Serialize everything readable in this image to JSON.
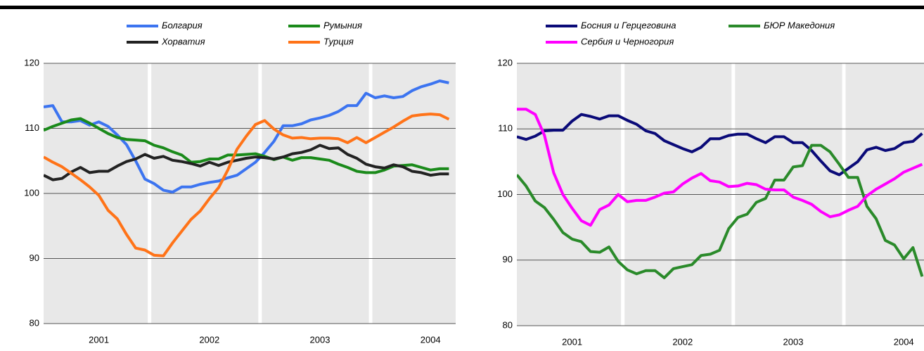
{
  "chart_data": [
    {
      "type": "line",
      "categories": [
        null,
        null,
        null,
        null,
        null,
        null,
        "2001",
        null,
        null,
        null,
        null,
        null,
        null,
        null,
        null,
        null,
        null,
        null,
        "2002",
        null,
        null,
        null,
        null,
        null,
        null,
        null,
        null,
        null,
        null,
        null,
        "2003",
        null,
        null,
        null,
        null,
        null,
        null,
        null,
        null,
        null,
        null,
        null,
        "2004",
        null,
        null
      ],
      "ylim": [
        80,
        120
      ],
      "yticks": [
        80,
        90,
        100,
        110,
        120
      ],
      "grid": true,
      "series": [
        {
          "name": "Болгария",
          "color": "#3c74f0",
          "values": [
            113.3,
            113.5,
            111,
            111,
            111.2,
            110.5,
            111,
            110.3,
            109,
            107.5,
            105,
            102.2,
            101.5,
            100.5,
            100.2,
            101,
            101,
            101.4,
            101.7,
            101.9,
            102.4,
            102.8,
            103.8,
            104.8,
            106.3,
            108,
            110.4,
            110.4,
            110.7,
            111.3,
            111.6,
            112,
            112.6,
            113.5,
            113.5,
            115.4,
            114.7,
            115,
            114.7,
            114.9,
            115.8,
            116.4,
            116.8,
            117.3,
            117
          ]
        },
        {
          "name": "Румыния",
          "color": "#1a8a1a",
          "values": [
            109.7,
            110.3,
            110.8,
            111.3,
            111.5,
            110.8,
            110,
            109.2,
            108.6,
            108.3,
            108.2,
            108.1,
            107.4,
            107,
            106.4,
            105.9,
            104.8,
            104.9,
            105.3,
            105.3,
            105.9,
            105.9,
            106,
            106.1,
            105.7,
            105.2,
            105.6,
            105.1,
            105.5,
            105.5,
            105.3,
            105.1,
            104.5,
            104,
            103.4,
            103.2,
            103.2,
            103.6,
            104.2,
            104.3,
            104.4,
            104,
            103.6,
            103.8,
            103.8
          ]
        },
        {
          "name": "Хорватия",
          "color": "#222222",
          "values": [
            102.8,
            102.1,
            102.3,
            103.3,
            104,
            103.2,
            103.4,
            103.4,
            104.2,
            104.9,
            105.3,
            106,
            105.4,
            105.7,
            105.1,
            104.9,
            104.6,
            104.2,
            104.8,
            104.3,
            104.8,
            105.1,
            105.4,
            105.6,
            105.5,
            105.3,
            105.6,
            106.1,
            106.3,
            106.7,
            107.4,
            106.9,
            107,
            106,
            105.4,
            104.5,
            104.1,
            103.9,
            104.4,
            104.1,
            103.4,
            103.2,
            102.8,
            103,
            103
          ]
        },
        {
          "name": "Турция",
          "color": "#ff7318",
          "values": [
            105.6,
            104.8,
            104.1,
            103.1,
            102.1,
            101,
            99.7,
            97.4,
            96.1,
            93.7,
            91.6,
            91.3,
            90.5,
            90.4,
            92.4,
            94.2,
            96,
            97.3,
            99.2,
            100.9,
            103.6,
            106.8,
            108.8,
            110.6,
            111.2,
            109.9,
            109,
            108.5,
            108.6,
            108.4,
            108.5,
            108.5,
            108.4,
            107.8,
            108.6,
            107.8,
            108.6,
            109.4,
            110.2,
            111.1,
            111.9,
            112.1,
            112.2,
            112.1,
            111.4
          ]
        }
      ]
    },
    {
      "type": "line",
      "categories": [
        null,
        null,
        null,
        null,
        null,
        null,
        "2001",
        null,
        null,
        null,
        null,
        null,
        null,
        null,
        null,
        null,
        null,
        null,
        "2002",
        null,
        null,
        null,
        null,
        null,
        null,
        null,
        null,
        null,
        null,
        null,
        "2003",
        null,
        null,
        null,
        null,
        null,
        null,
        null,
        null,
        null,
        null,
        null,
        "2004",
        null,
        null
      ],
      "ylim": [
        80,
        120
      ],
      "yticks": [
        80,
        90,
        100,
        110,
        120
      ],
      "grid": true,
      "series": [
        {
          "name": "Босния и Герцеговина",
          "color": "#0a0a78",
          "values": [
            108.8,
            108.4,
            108.9,
            109.7,
            109.8,
            109.8,
            111.2,
            112.2,
            111.9,
            111.5,
            112,
            112,
            111.3,
            110.7,
            109.7,
            109.3,
            108.2,
            107.6,
            107,
            106.5,
            107.2,
            108.5,
            108.5,
            109,
            109.2,
            109.2,
            108.5,
            107.9,
            108.8,
            108.8,
            107.9,
            107.9,
            106.7,
            105.1,
            103.6,
            103,
            104,
            105,
            106.8,
            107.2,
            106.7,
            107,
            107.9,
            108.1,
            109.3
          ]
        },
        {
          "name": "БЮР Македония",
          "color": "#2a8a2a",
          "values": [
            103,
            101.3,
            99,
            98,
            96.2,
            94.2,
            93.2,
            92.8,
            91.3,
            91.2,
            92,
            89.8,
            88.5,
            87.9,
            88.4,
            88.4,
            87.3,
            88.7,
            89,
            89.3,
            90.7,
            90.9,
            91.5,
            94.8,
            96.5,
            97,
            98.8,
            99.4,
            102.2,
            102.2,
            104.2,
            104.4,
            107.5,
            107.5,
            106.5,
            104.6,
            102.6,
            102.6,
            98.2,
            96.3,
            93,
            92.3,
            90.2,
            91.9,
            87.5
          ]
        },
        {
          "name": "Сербия и Черногория",
          "color": "#ff00ff",
          "values": [
            113,
            113,
            112.2,
            109,
            103.3,
            100,
            97.9,
            96,
            95.3,
            97.7,
            98.4,
            100,
            98.9,
            99.1,
            99.1,
            99.6,
            100.2,
            100.4,
            101.6,
            102.5,
            103.2,
            102.1,
            101.9,
            101.2,
            101.3,
            101.7,
            101.5,
            100.8,
            100.7,
            100.7,
            99.6,
            99.1,
            98.5,
            97.4,
            96.6,
            96.9,
            97.6,
            98.2,
            99.8,
            100.8,
            101.6,
            102.4,
            103.4,
            104,
            104.6
          ]
        }
      ]
    }
  ]
}
